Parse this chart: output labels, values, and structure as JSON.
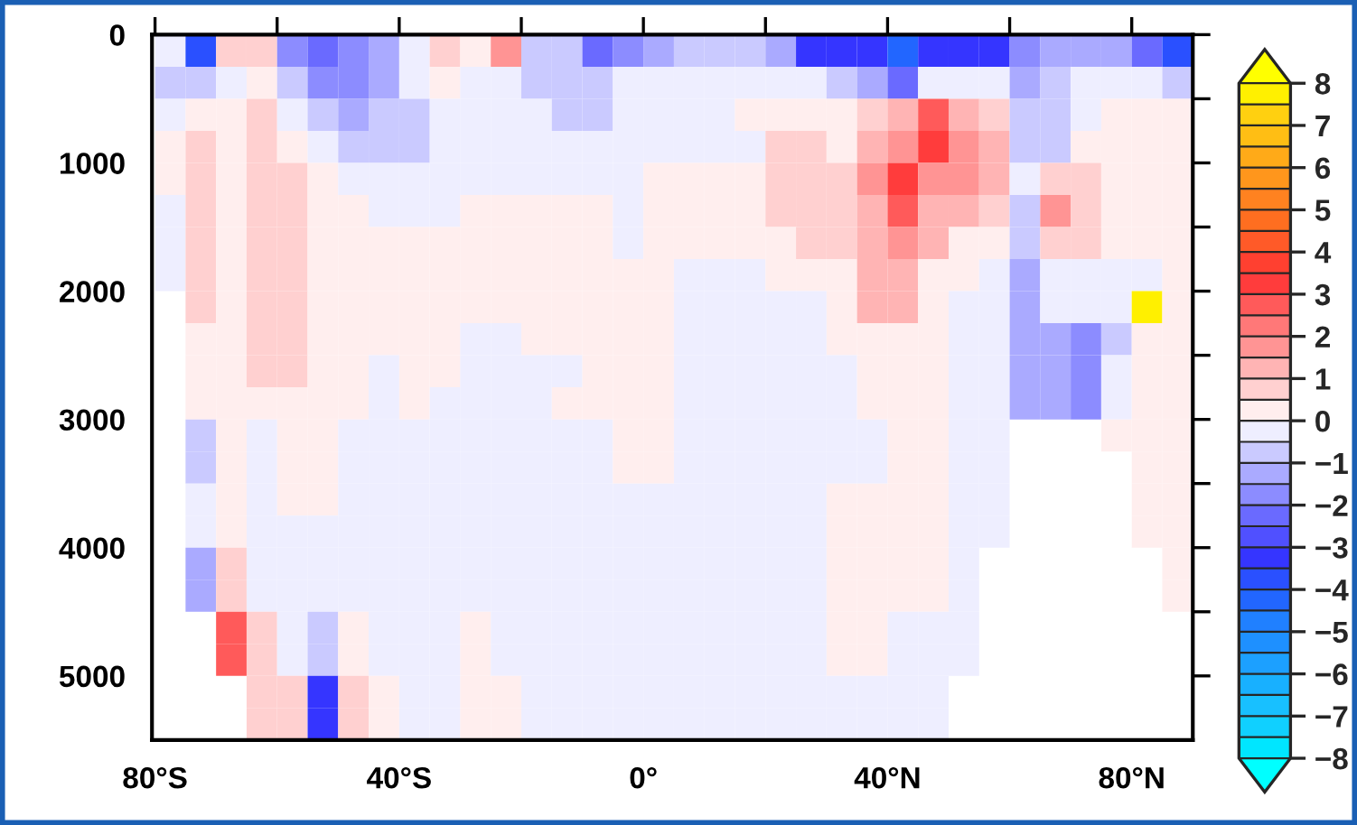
{
  "chart_data": {
    "type": "heatmap",
    "x": [
      -77.5,
      -72.5,
      -67.5,
      -62.5,
      -57.5,
      -52.5,
      -47.5,
      -42.5,
      -37.5,
      -32.5,
      -27.5,
      -22.5,
      -17.5,
      -12.5,
      -7.5,
      -2.5,
      2.5,
      7.5,
      12.5,
      17.5,
      22.5,
      27.5,
      32.5,
      37.5,
      42.5,
      47.5,
      52.5,
      57.5,
      62.5,
      67.5,
      72.5,
      77.5,
      82.5,
      87.5
    ],
    "y": [
      125,
      375,
      625,
      875,
      1125,
      1375,
      1625,
      1875,
      2125,
      2375,
      2625,
      2875,
      3125,
      3375,
      3625,
      3875,
      4125,
      4375,
      4625,
      4875,
      5125,
      5375
    ],
    "cells": [
      [
        -0.25,
        -3.75,
        0.75,
        0.75,
        -1.75,
        -2.25,
        -1.75,
        -1.25,
        -0.25,
        0.75,
        0.25,
        1.75,
        -0.75,
        -0.75,
        -2.25,
        -1.75,
        -1.25,
        -0.75,
        -0.75,
        -0.75,
        -1.25,
        -3.25,
        -3.25,
        -3.25,
        -4.25,
        -3.25,
        -3.25,
        -3.25,
        -1.75,
        -1.25,
        -1.25,
        -1.25,
        -2.25,
        -3.75
      ],
      [
        -0.75,
        -0.75,
        -0.25,
        0.25,
        -0.75,
        -1.75,
        -1.75,
        -1.25,
        -0.25,
        0.25,
        -0.25,
        -0.25,
        -0.75,
        -0.75,
        -0.75,
        -0.25,
        -0.25,
        -0.25,
        -0.25,
        -0.25,
        -0.25,
        -0.25,
        -0.75,
        -1.25,
        -2.25,
        -0.25,
        -0.25,
        -0.25,
        -1.25,
        -0.75,
        -0.25,
        -0.25,
        -0.25,
        -0.75
      ],
      [
        -0.25,
        0.25,
        0.25,
        0.75,
        -0.25,
        -0.75,
        -1.25,
        -0.75,
        -0.75,
        -0.25,
        -0.25,
        -0.25,
        -0.25,
        -0.75,
        -0.75,
        -0.25,
        -0.25,
        -0.25,
        -0.25,
        0.25,
        0.25,
        0.25,
        0.25,
        0.75,
        1.25,
        2.75,
        1.25,
        0.75,
        -0.75,
        -0.75,
        -0.25,
        0.25,
        0.25,
        0.25
      ],
      [
        0.25,
        0.75,
        0.25,
        0.75,
        0.25,
        -0.25,
        -0.75,
        -0.75,
        -0.75,
        -0.25,
        -0.25,
        -0.25,
        -0.25,
        -0.25,
        -0.25,
        -0.25,
        -0.25,
        -0.25,
        -0.25,
        -0.25,
        0.75,
        0.75,
        0.25,
        1.25,
        1.75,
        3.25,
        1.75,
        1.25,
        -0.75,
        -0.75,
        0.25,
        0.25,
        0.25,
        0.25
      ],
      [
        0.25,
        0.75,
        0.25,
        0.75,
        0.75,
        0.25,
        -0.25,
        -0.25,
        -0.25,
        -0.25,
        -0.25,
        -0.25,
        -0.25,
        -0.25,
        -0.25,
        -0.25,
        0.25,
        0.25,
        0.25,
        0.25,
        0.75,
        0.75,
        0.75,
        1.75,
        3.25,
        1.75,
        1.75,
        1.25,
        -0.25,
        0.75,
        0.75,
        0.25,
        0.25,
        0.25
      ],
      [
        -0.25,
        0.75,
        0.25,
        0.75,
        0.75,
        0.25,
        0.25,
        -0.25,
        -0.25,
        -0.25,
        0.25,
        0.25,
        0.25,
        0.25,
        0.25,
        -0.25,
        0.25,
        0.25,
        0.25,
        0.25,
        0.75,
        0.75,
        0.75,
        1.25,
        2.75,
        1.25,
        1.25,
        0.75,
        -0.75,
        1.75,
        0.75,
        0.25,
        0.25,
        0.25
      ],
      [
        -0.25,
        0.75,
        0.25,
        0.75,
        0.75,
        0.25,
        0.25,
        0.25,
        0.25,
        0.25,
        0.25,
        0.25,
        0.25,
        0.25,
        0.25,
        -0.25,
        0.25,
        0.25,
        0.25,
        0.25,
        0.25,
        0.75,
        0.75,
        1.25,
        1.75,
        1.25,
        0.25,
        0.25,
        -0.75,
        0.75,
        0.75,
        0.25,
        0.25,
        0.25
      ],
      [
        -0.25,
        0.75,
        0.25,
        0.75,
        0.75,
        0.25,
        0.25,
        0.25,
        0.25,
        0.25,
        0.25,
        0.25,
        0.25,
        0.25,
        0.25,
        0.25,
        0.25,
        -0.25,
        -0.25,
        -0.25,
        0.25,
        0.25,
        0.25,
        1.25,
        1.25,
        0.25,
        0.25,
        -0.25,
        -1.25,
        -0.25,
        -0.25,
        -0.25,
        -0.25,
        0.25
      ],
      [
        null,
        0.75,
        0.25,
        0.75,
        0.75,
        0.25,
        0.25,
        0.25,
        0.25,
        0.25,
        0.25,
        0.25,
        0.25,
        0.25,
        0.25,
        0.25,
        0.25,
        -0.25,
        -0.25,
        -0.25,
        -0.25,
        -0.25,
        0.25,
        1.25,
        1.25,
        0.25,
        -0.25,
        -0.25,
        -1.25,
        -0.25,
        -0.25,
        -0.25,
        7.75,
        0.25
      ],
      [
        null,
        0.25,
        0.25,
        0.75,
        0.75,
        0.25,
        0.25,
        0.25,
        0.25,
        0.25,
        -0.25,
        -0.25,
        0.25,
        0.25,
        0.25,
        0.25,
        0.25,
        -0.25,
        -0.25,
        -0.25,
        -0.25,
        -0.25,
        0.25,
        0.25,
        0.25,
        0.25,
        -0.25,
        -0.25,
        -1.25,
        -1.25,
        -1.75,
        -0.75,
        0.25,
        0.25
      ],
      [
        null,
        0.25,
        0.25,
        0.75,
        0.75,
        0.25,
        0.25,
        -0.25,
        0.25,
        0.25,
        -0.25,
        -0.25,
        -0.25,
        -0.25,
        0.25,
        0.25,
        0.25,
        -0.25,
        -0.25,
        -0.25,
        -0.25,
        -0.25,
        -0.25,
        0.25,
        0.25,
        0.25,
        -0.25,
        -0.25,
        -1.25,
        -1.25,
        -1.75,
        -0.25,
        0.25,
        0.25
      ],
      [
        null,
        0.25,
        0.25,
        0.25,
        0.25,
        0.25,
        0.25,
        -0.25,
        0.25,
        -0.25,
        -0.25,
        -0.25,
        -0.25,
        0.25,
        0.25,
        0.25,
        0.25,
        -0.25,
        -0.25,
        -0.25,
        -0.25,
        -0.25,
        -0.25,
        0.25,
        0.25,
        0.25,
        -0.25,
        -0.25,
        -1.25,
        -1.25,
        -1.75,
        -0.25,
        0.25,
        0.25
      ],
      [
        null,
        -0.75,
        0.25,
        -0.25,
        0.25,
        0.25,
        -0.25,
        -0.25,
        -0.25,
        -0.25,
        -0.25,
        -0.25,
        -0.25,
        -0.25,
        -0.25,
        0.25,
        0.25,
        -0.25,
        -0.25,
        -0.25,
        -0.25,
        -0.25,
        -0.25,
        -0.25,
        0.25,
        0.25,
        -0.25,
        -0.25,
        null,
        null,
        null,
        0.25,
        0.25,
        0.25
      ],
      [
        null,
        -0.75,
        0.25,
        -0.25,
        0.25,
        0.25,
        -0.25,
        -0.25,
        -0.25,
        -0.25,
        -0.25,
        -0.25,
        -0.25,
        -0.25,
        -0.25,
        0.25,
        0.25,
        -0.25,
        -0.25,
        -0.25,
        -0.25,
        -0.25,
        -0.25,
        -0.25,
        0.25,
        0.25,
        -0.25,
        -0.25,
        null,
        null,
        null,
        null,
        0.25,
        0.25
      ],
      [
        null,
        -0.25,
        0.25,
        -0.25,
        0.25,
        0.25,
        -0.25,
        -0.25,
        -0.25,
        -0.25,
        -0.25,
        -0.25,
        -0.25,
        -0.25,
        -0.25,
        -0.25,
        -0.25,
        -0.25,
        -0.25,
        -0.25,
        -0.25,
        -0.25,
        0.25,
        0.25,
        0.25,
        0.25,
        -0.25,
        -0.25,
        null,
        null,
        null,
        null,
        0.25,
        0.25
      ],
      [
        null,
        -0.25,
        0.25,
        -0.25,
        -0.25,
        -0.25,
        -0.25,
        -0.25,
        -0.25,
        -0.25,
        -0.25,
        -0.25,
        -0.25,
        -0.25,
        -0.25,
        -0.25,
        -0.25,
        -0.25,
        -0.25,
        -0.25,
        -0.25,
        -0.25,
        0.25,
        0.25,
        0.25,
        0.25,
        -0.25,
        -0.25,
        null,
        null,
        null,
        null,
        0.25,
        0.25
      ],
      [
        null,
        -1.25,
        0.75,
        -0.25,
        -0.25,
        -0.25,
        -0.25,
        -0.25,
        -0.25,
        -0.25,
        -0.25,
        -0.25,
        -0.25,
        -0.25,
        -0.25,
        -0.25,
        -0.25,
        -0.25,
        -0.25,
        -0.25,
        -0.25,
        -0.25,
        0.25,
        0.25,
        0.25,
        0.25,
        -0.25,
        null,
        null,
        null,
        null,
        null,
        null,
        0.25
      ],
      [
        null,
        -1.25,
        0.75,
        -0.25,
        -0.25,
        -0.25,
        -0.25,
        -0.25,
        -0.25,
        -0.25,
        -0.25,
        -0.25,
        -0.25,
        -0.25,
        -0.25,
        -0.25,
        -0.25,
        -0.25,
        -0.25,
        -0.25,
        -0.25,
        -0.25,
        0.25,
        0.25,
        0.25,
        0.25,
        -0.25,
        null,
        null,
        null,
        null,
        null,
        null,
        0.25
      ],
      [
        null,
        null,
        2.75,
        0.75,
        -0.25,
        -0.75,
        0.25,
        -0.25,
        -0.25,
        -0.25,
        0.25,
        -0.25,
        -0.25,
        -0.25,
        -0.25,
        -0.25,
        -0.25,
        -0.25,
        -0.25,
        -0.25,
        -0.25,
        -0.25,
        0.25,
        0.25,
        -0.25,
        -0.25,
        -0.25,
        null,
        null,
        null,
        null,
        null,
        null,
        null
      ],
      [
        null,
        null,
        2.75,
        0.75,
        -0.25,
        -0.75,
        0.25,
        -0.25,
        -0.25,
        -0.25,
        0.25,
        -0.25,
        -0.25,
        -0.25,
        -0.25,
        -0.25,
        -0.25,
        -0.25,
        -0.25,
        -0.25,
        -0.25,
        -0.25,
        0.25,
        0.25,
        -0.25,
        -0.25,
        -0.25,
        null,
        null,
        null,
        null,
        null,
        null,
        null
      ],
      [
        null,
        null,
        null,
        0.75,
        0.75,
        -3.25,
        0.75,
        0.25,
        -0.25,
        -0.25,
        0.25,
        0.25,
        -0.25,
        -0.25,
        -0.25,
        -0.25,
        -0.25,
        -0.25,
        -0.25,
        -0.25,
        -0.25,
        -0.25,
        -0.25,
        -0.25,
        -0.25,
        -0.25,
        null,
        null,
        null,
        null,
        null,
        null,
        null,
        null
      ],
      [
        null,
        null,
        null,
        0.75,
        0.75,
        -3.25,
        0.75,
        0.25,
        -0.25,
        -0.25,
        0.25,
        0.25,
        -0.25,
        -0.25,
        -0.25,
        -0.25,
        -0.25,
        -0.25,
        -0.25,
        -0.25,
        -0.25,
        -0.25,
        -0.25,
        -0.25,
        -0.25,
        -0.25,
        null,
        null,
        null,
        null,
        null,
        null,
        null,
        null
      ]
    ],
    "xlim": [
      -80.5,
      90
    ],
    "xticks": [
      {
        "value": -80,
        "label": "80°S"
      },
      {
        "value": -60,
        "label": null
      },
      {
        "value": -40,
        "label": "40°S"
      },
      {
        "value": -20,
        "label": null
      },
      {
        "value": 0,
        "label": "0°"
      },
      {
        "value": 20,
        "label": null
      },
      {
        "value": 40,
        "label": "40°N"
      },
      {
        "value": 60,
        "label": null
      },
      {
        "value": 80,
        "label": "80°N"
      }
    ],
    "ylim": [
      5500,
      0
    ],
    "yticks": [
      0,
      {
        "value": 500,
        "label": null
      },
      1000,
      {
        "value": 1500,
        "label": null
      },
      2000,
      {
        "value": 2500,
        "label": null
      },
      3000,
      {
        "value": 3500,
        "label": null
      },
      4000,
      {
        "value": 4500,
        "label": null
      },
      5000
    ],
    "clim": [
      -8,
      8
    ],
    "cticks": [
      -8,
      -7,
      -6,
      -5,
      -4,
      -3,
      -2,
      -1,
      0,
      1,
      2,
      3,
      4,
      5,
      6,
      7,
      8
    ],
    "colors": [
      "#00ffff",
      "#00e6ff",
      "#10d0ff",
      "#18c0ff",
      "#18b0ff",
      "#1ca0ff",
      "#1e90ff",
      "#2080ff",
      "#2266ff",
      "#2a50ff",
      "#3535ff",
      "#5050ff",
      "#6a6aff",
      "#8c8cff",
      "#aaaaff",
      "#cacaff",
      "#eeeeff",
      "#ffeeee",
      "#ffd0d0",
      "#ffb4b4",
      "#ff9494",
      "#ff7878",
      "#ff5a5a",
      "#ff3c3c",
      "#ff4030",
      "#ff5a28",
      "#ff6e20",
      "#ff8220",
      "#ff961c",
      "#ffaa18",
      "#ffbe14",
      "#ffd010",
      "#fff000",
      "#ffff00"
    ]
  }
}
